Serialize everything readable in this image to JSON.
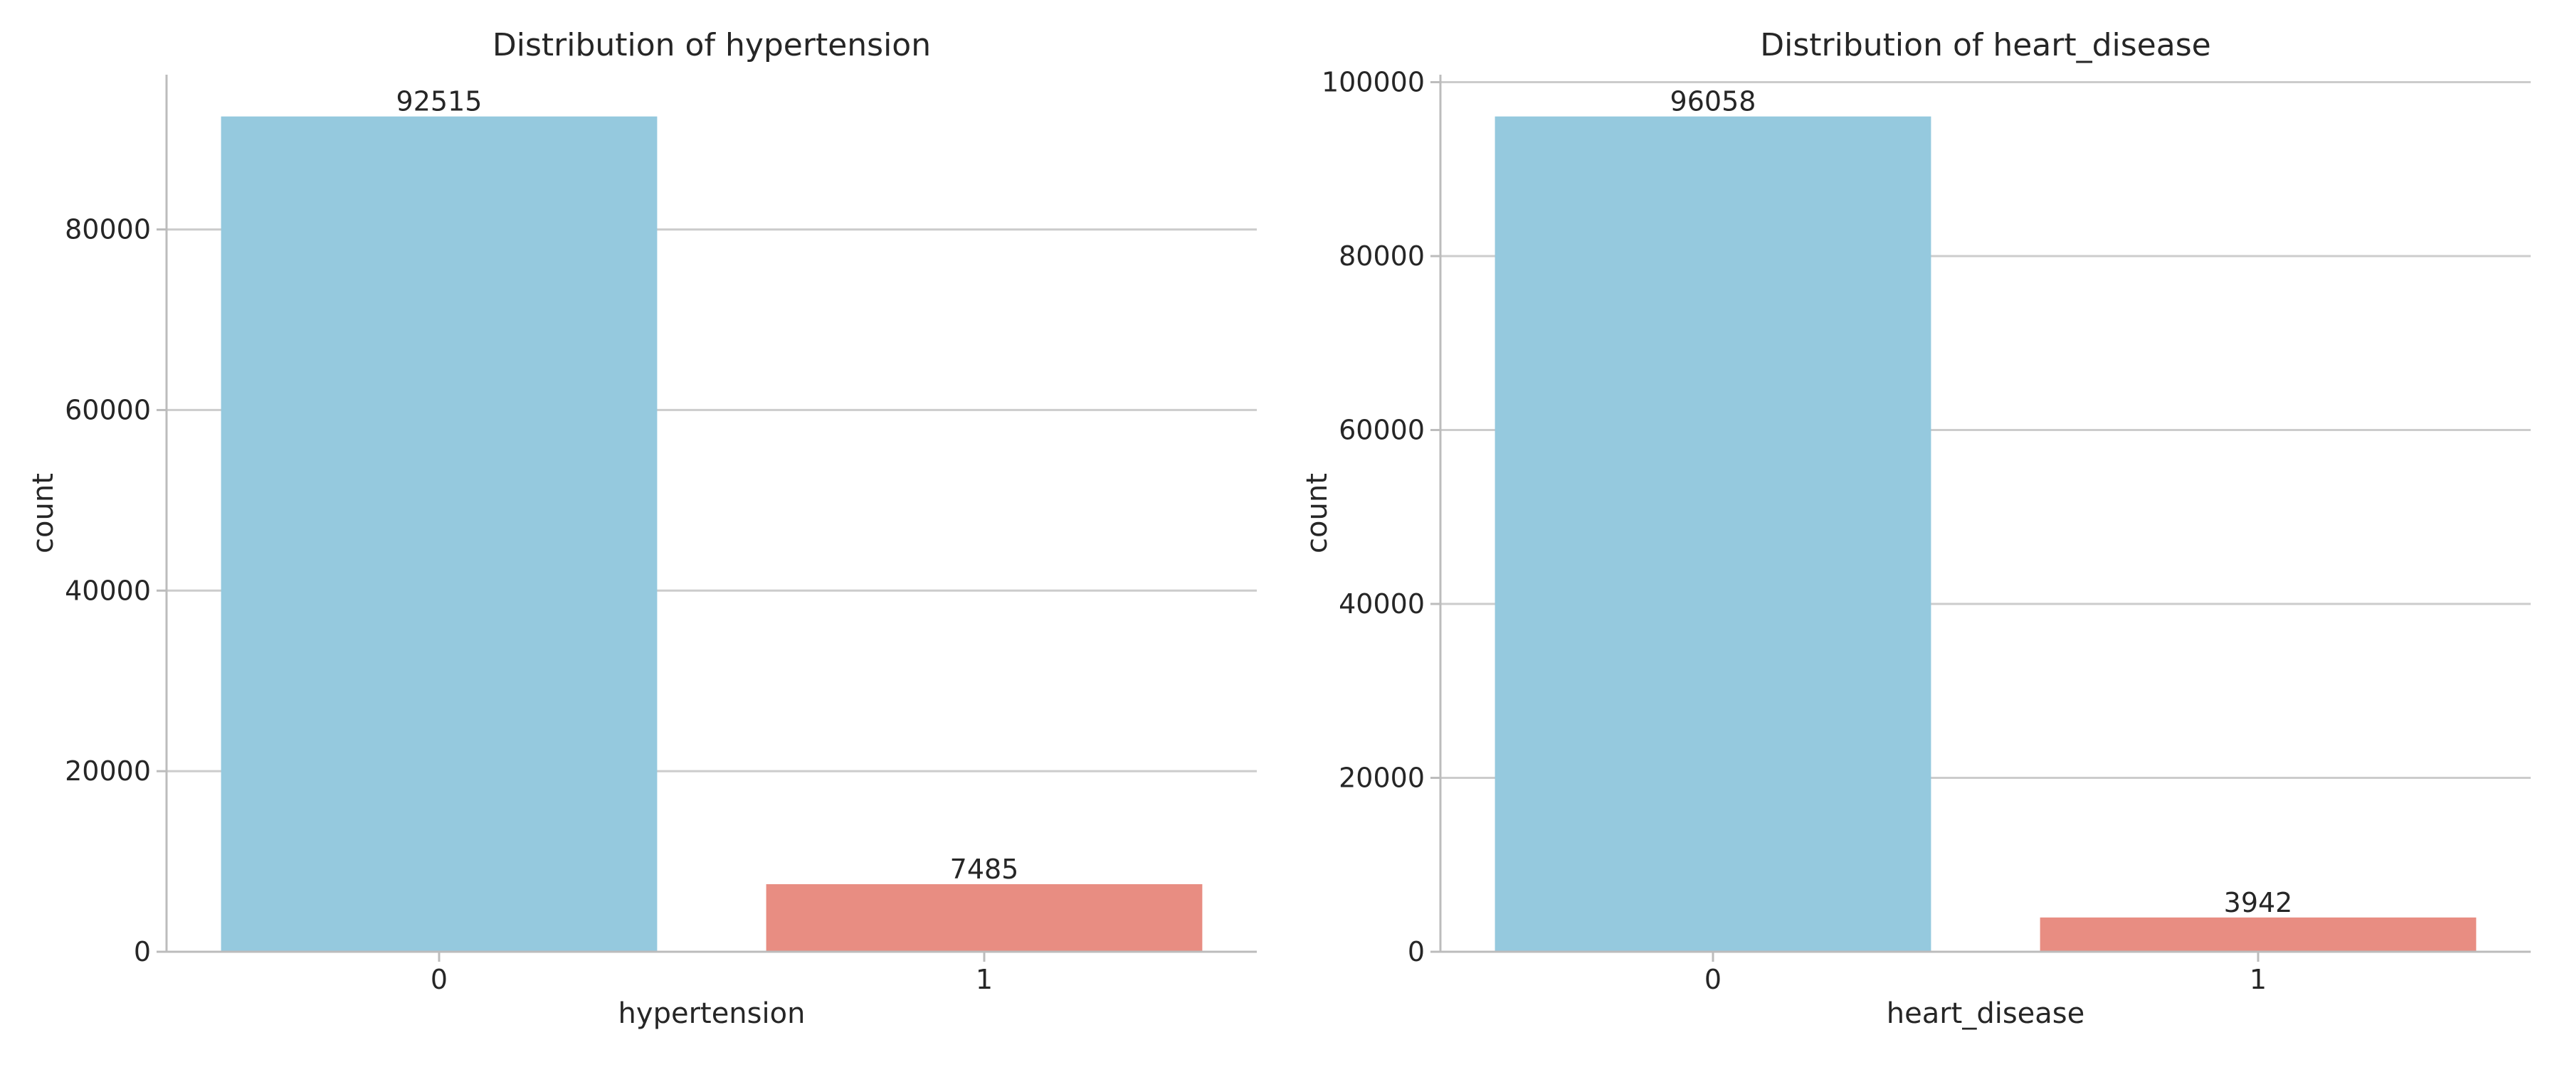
{
  "chart_data": [
    {
      "type": "bar",
      "title": "Distribution of hypertension",
      "xlabel": "hypertension",
      "ylabel": "count",
      "categories": [
        "0",
        "1"
      ],
      "values": [
        92515,
        7485
      ],
      "bar_labels": [
        "92515",
        "7485"
      ],
      "colors": [
        "#95c9de",
        "#e88d82"
      ],
      "ylim": [
        0,
        97141
      ],
      "yticks": [
        0,
        20000,
        40000,
        60000,
        80000
      ],
      "ytick_labels": [
        "0",
        "20000",
        "40000",
        "60000",
        "80000"
      ],
      "grid": "y",
      "legend": "none"
    },
    {
      "type": "bar",
      "title": "Distribution of heart_disease",
      "xlabel": "heart_disease",
      "ylabel": "count",
      "categories": [
        "0",
        "1"
      ],
      "values": [
        96058,
        3942
      ],
      "bar_labels": [
        "96058",
        "3942"
      ],
      "colors": [
        "#95c9de",
        "#e88d82"
      ],
      "ylim": [
        0,
        100861
      ],
      "yticks": [
        0,
        20000,
        40000,
        60000,
        80000,
        100000
      ],
      "ytick_labels": [
        "0",
        "20000",
        "40000",
        "60000",
        "80000",
        "100000"
      ],
      "grid": "y",
      "legend": "none"
    }
  ]
}
